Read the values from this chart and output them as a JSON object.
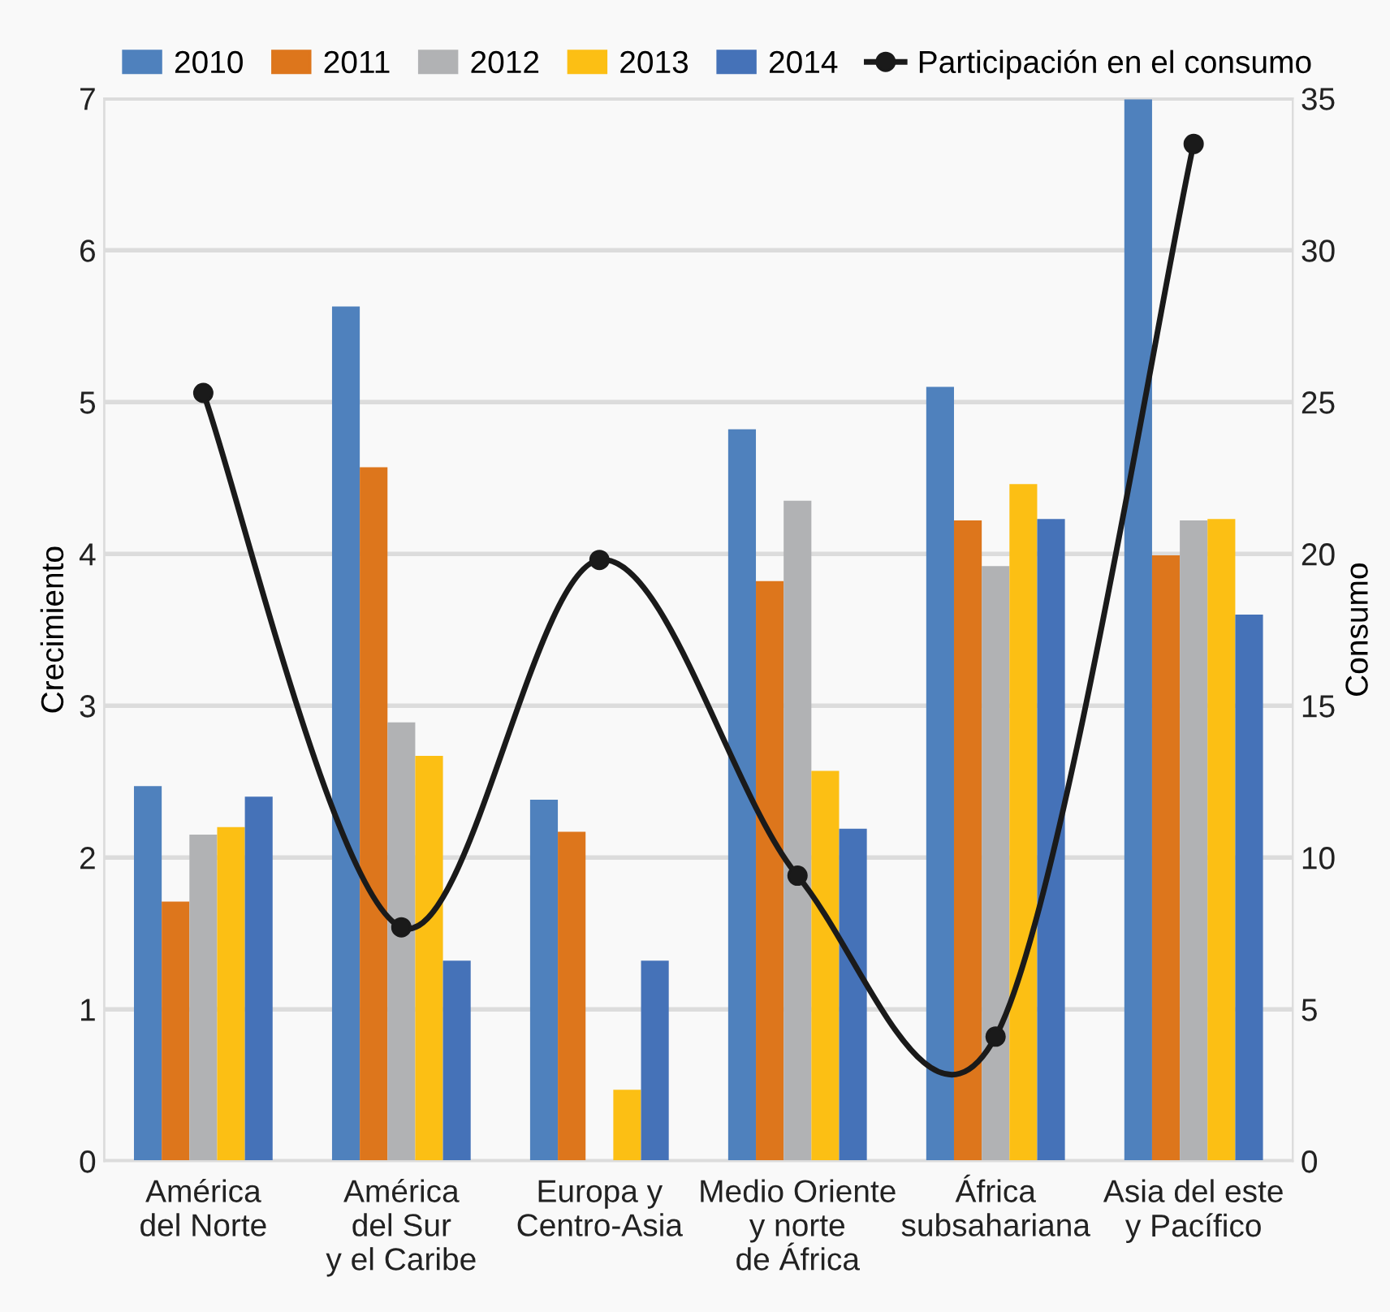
{
  "chart_data": {
    "type": "bar",
    "ylabel": "Crecimiento",
    "y2label": "Consumo",
    "categories": [
      "América\ndel Norte",
      "América\ndel Sur\ny el Caribe",
      "Europa y\nCentro-Asia",
      "Medio Oriente\ny norte\nde África",
      "África\nsubsahariana",
      "Asia del este\ny Pacífico"
    ],
    "series": [
      {
        "name": "2010",
        "color": "#4f81bd",
        "values": [
          2.47,
          5.63,
          2.38,
          4.82,
          5.1,
          7.0
        ]
      },
      {
        "name": "2011",
        "color": "#dd761c",
        "values": [
          1.71,
          4.57,
          2.17,
          3.82,
          4.22,
          3.99
        ]
      },
      {
        "name": "2012",
        "color": "#b1b2b4",
        "values": [
          2.15,
          2.89,
          0,
          4.35,
          3.92,
          4.22
        ]
      },
      {
        "name": "2013",
        "color": "#fcbf14",
        "values": [
          2.2,
          2.67,
          0.47,
          2.57,
          4.46,
          4.23
        ]
      },
      {
        "name": "2014",
        "color": "#4572b8",
        "values": [
          2.4,
          1.32,
          1.32,
          2.19,
          4.23,
          3.6
        ]
      },
      {
        "name": "Participación en el consumo",
        "type": "line",
        "axis": "y2",
        "color": "#1a1a1a",
        "marker": "circle",
        "values": [
          25.3,
          7.7,
          19.8,
          9.4,
          4.1,
          33.5
        ]
      }
    ],
    "ylim": [
      0,
      7
    ],
    "yticks": [
      0,
      1,
      2,
      3,
      4,
      5,
      6,
      7
    ],
    "y2lim": [
      0,
      35
    ],
    "y2ticks": [
      0,
      5,
      10,
      15,
      20,
      25,
      30,
      35
    ],
    "grid": "y",
    "legend": "top"
  }
}
